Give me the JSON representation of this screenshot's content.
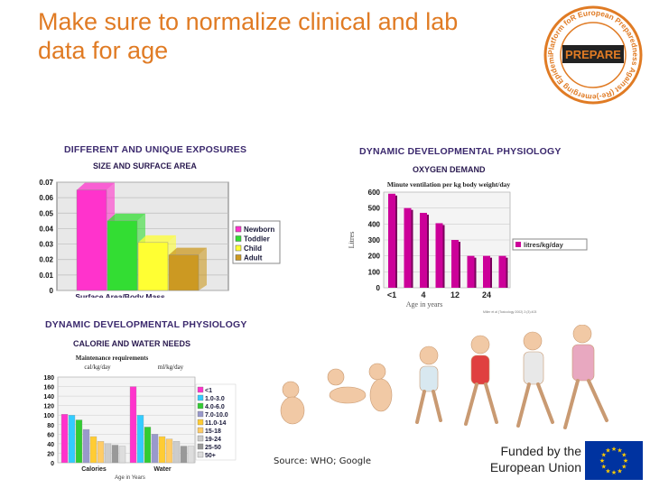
{
  "slide": {
    "title_line1": "Make sure to normalize clinical and lab",
    "title_line2": "data  for age",
    "source": "Source: WHO; Google",
    "funded_line1": "Funded by the",
    "funded_line2": "European Union",
    "accent_color": "#e07b24"
  },
  "logo": {
    "wordmark": "PREPARE",
    "ring_text": "Platform foR European Preparedness Against (Re-)emerging Epidemics",
    "color": "#e07b24"
  },
  "eu_flag": {
    "icon": "eu-flag-icon",
    "color": "#0033a0",
    "star_color": "#ffcc00"
  },
  "photo": {
    "icon": "child-growth-photo-icon"
  },
  "chart_data": [
    {
      "type": "bar",
      "title": "DIFFERENT AND UNIQUE  EXPOSURES",
      "subtitle": "SIZE AND SURFACE AREA",
      "xlabel": "Surface Area/Body Mass",
      "categories": [
        "Newborn",
        "Toddler",
        "Child",
        "Adult"
      ],
      "values": [
        0.065,
        0.045,
        0.031,
        0.023
      ],
      "colors": [
        "#ff33cc",
        "#33dd33",
        "#ffff33",
        "#cc9922"
      ],
      "yticks": [
        "0",
        "0.01",
        "0.02",
        "0.03",
        "0.04",
        "0.05",
        "0.06",
        "0.07"
      ],
      "ylim": [
        0,
        0.07
      ],
      "grid": true,
      "legend_position": "right"
    },
    {
      "type": "bar",
      "title": "DYNAMIC DEVELOPMENTAL PHYSIOLOGY",
      "subtitle": "OXYGEN DEMAND",
      "plot_title": "Minute ventilation per kg body weight/day",
      "ylabel": "Litres",
      "xlabel": "Age in years",
      "xtick_labels": [
        "<1",
        "4",
        "12",
        "24"
      ],
      "values": [
        590,
        500,
        470,
        405,
        300,
        200,
        200,
        200
      ],
      "color": "#cc0099",
      "yticks": [
        "0",
        "100",
        "200",
        "300",
        "400",
        "500",
        "600"
      ],
      "ylim": [
        0,
        600
      ],
      "grid": true,
      "legend": [
        "litres/kg/day"
      ],
      "legend_position": "right",
      "citation": "Miller et al (Toxicology 2002) 2:(3):403"
    },
    {
      "type": "bar",
      "title": "DYNAMIC DEVELOPMENTAL PHYSIOLOGY",
      "subtitle": "CALORIE AND WATER NEEDS",
      "plot_title": "Maintenance requirements",
      "unit_labels": [
        "cal/kg/day",
        "ml/kg/day"
      ],
      "xlabel": "Age in Years",
      "categories": [
        "Calories",
        "Water"
      ],
      "series": [
        {
          "name": "<1",
          "color": "#ff33cc"
        },
        {
          "name": "1.0-3.0",
          "color": "#33ccff"
        },
        {
          "name": "4.0-6.0",
          "color": "#33cc33"
        },
        {
          "name": "7.0-10.0",
          "color": "#9999cc"
        },
        {
          "name": "11.0-14",
          "color": "#ffcc33"
        },
        {
          "name": "15-18",
          "color": "#ffcc66"
        },
        {
          "name": "19-24",
          "color": "#cccccc"
        },
        {
          "name": "25-50",
          "color": "#999999"
        },
        {
          "name": "50+",
          "color": "#dddddd"
        }
      ],
      "values": [
        [
          102,
          100,
          90,
          70,
          55,
          45,
          40,
          37,
          35
        ],
        [
          160,
          100,
          75,
          60,
          55,
          50,
          45,
          35,
          35
        ]
      ],
      "yticks": [
        "0",
        "20",
        "40",
        "60",
        "80",
        "100",
        "120",
        "140",
        "160",
        "180"
      ],
      "ylim": [
        0,
        180
      ],
      "grid": true,
      "legend_position": "right"
    }
  ]
}
